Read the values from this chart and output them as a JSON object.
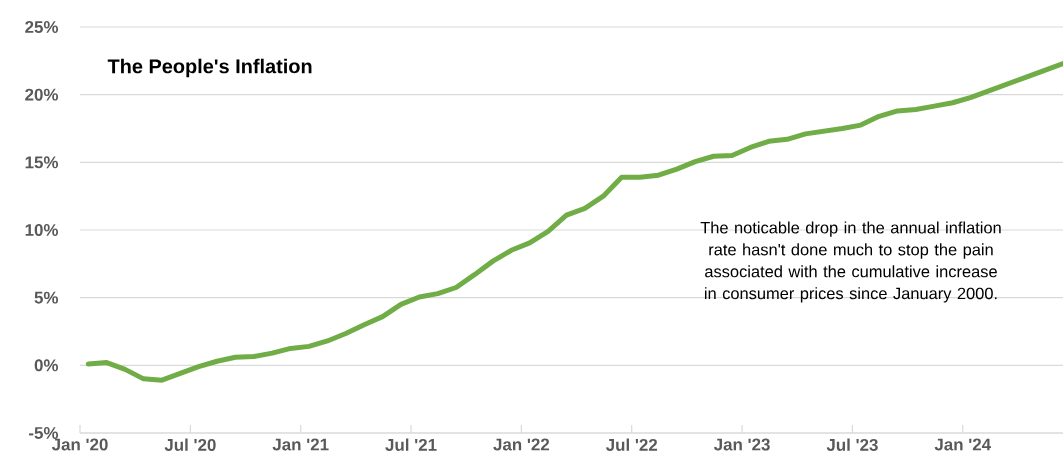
{
  "chart_data": {
    "type": "line",
    "title": "The People's Inflation",
    "x": [
      "2020-01-15",
      "2020-02-15",
      "2020-03-15",
      "2020-04-15",
      "2020-05-15",
      "2020-06-15",
      "2020-07-15",
      "2020-08-15",
      "2020-09-15",
      "2020-10-15",
      "2020-11-15",
      "2020-12-15",
      "2021-01-15",
      "2021-02-15",
      "2021-03-15",
      "2021-04-15",
      "2021-05-15",
      "2021-06-15",
      "2021-07-15",
      "2021-08-15",
      "2021-09-15",
      "2021-10-15",
      "2021-11-15",
      "2021-12-15",
      "2022-01-15",
      "2022-02-15",
      "2022-03-15",
      "2022-04-15",
      "2022-05-15",
      "2022-06-15",
      "2022-07-15",
      "2022-08-15",
      "2022-09-15",
      "2022-10-15",
      "2022-11-15",
      "2022-12-15",
      "2023-01-15",
      "2023-02-15",
      "2023-03-15",
      "2023-04-15",
      "2023-05-15",
      "2023-06-15",
      "2023-07-15",
      "2023-08-15",
      "2023-09-15",
      "2023-10-15",
      "2023-11-15",
      "2023-12-15",
      "2024-01-15",
      "2024-02-15",
      "2024-03-15",
      "2024-04-15",
      "2024-05-15",
      "2024-06-15"
    ],
    "values": [
      0.1,
      0.2,
      -0.3,
      -1.0,
      -1.1,
      -0.6,
      -0.1,
      0.3,
      0.6,
      0.65,
      0.9,
      1.25,
      1.4,
      1.8,
      2.35,
      3.0,
      3.6,
      4.5,
      5.05,
      5.3,
      5.75,
      6.7,
      7.7,
      8.5,
      9.05,
      9.9,
      11.1,
      11.6,
      12.5,
      13.9,
      13.9,
      14.05,
      14.5,
      15.05,
      15.45,
      15.5,
      16.1,
      16.55,
      16.7,
      17.1,
      17.3,
      17.5,
      17.75,
      18.4,
      18.8,
      18.9,
      19.15,
      19.4,
      19.8,
      20.3,
      20.8,
      21.3,
      21.8,
      22.3
    ],
    "color": "#70ad47",
    "line_style": "solid",
    "marker": "none",
    "grid": "y",
    "xlim": [
      "2020-01",
      "2024-06-15"
    ],
    "xticks": [
      {
        "value": "2020-01",
        "label": "Jan '20"
      },
      {
        "value": "2020-07",
        "label": "Jul '20"
      },
      {
        "value": "2021-01",
        "label": "Jan '21"
      },
      {
        "value": "2021-07",
        "label": "Jul '21"
      },
      {
        "value": "2022-01",
        "label": "Jan '22"
      },
      {
        "value": "2022-07",
        "label": "Jul '22"
      },
      {
        "value": "2023-01",
        "label": "Jan '23"
      },
      {
        "value": "2023-07",
        "label": "Jul '23"
      },
      {
        "value": "2024-01",
        "label": "Jan '24"
      }
    ],
    "ylim": [
      -5,
      25
    ],
    "yticks": [
      {
        "value": -5,
        "label": "-5%"
      },
      {
        "value": 0,
        "label": "0%"
      },
      {
        "value": 5,
        "label": "5%"
      },
      {
        "value": 10,
        "label": "10%"
      },
      {
        "value": 15,
        "label": "15%"
      },
      {
        "value": 20,
        "label": "20%"
      },
      {
        "value": 25,
        "label": "25%"
      }
    ],
    "annotations": [
      "The noticable drop in the annual inflation rate hasn't done much to stop the pain associated with the cumulative increase in consumer prices since January 2000."
    ]
  }
}
